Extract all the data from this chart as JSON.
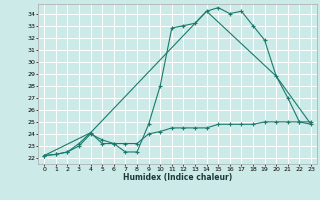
{
  "xlabel": "Humidex (Indice chaleur)",
  "bg_color": "#cceae7",
  "grid_color": "#ffffff",
  "line_color": "#1a7a6e",
  "xlim": [
    -0.5,
    23.5
  ],
  "ylim": [
    21.5,
    34.8
  ],
  "yticks": [
    22,
    23,
    24,
    25,
    26,
    27,
    28,
    29,
    30,
    31,
    32,
    33,
    34
  ],
  "xticks": [
    0,
    1,
    2,
    3,
    4,
    5,
    6,
    7,
    8,
    9,
    10,
    11,
    12,
    13,
    14,
    15,
    16,
    17,
    18,
    19,
    20,
    21,
    22,
    23
  ],
  "series1_x": [
    0,
    1,
    2,
    3,
    4,
    5,
    6,
    7,
    8,
    9,
    10,
    11,
    12,
    13,
    14,
    15,
    16,
    17,
    18,
    19,
    20,
    21,
    22,
    23
  ],
  "series1_y": [
    22.2,
    22.3,
    22.5,
    23.2,
    24.1,
    23.2,
    23.2,
    22.5,
    22.5,
    24.8,
    28.0,
    32.8,
    33.0,
    33.2,
    34.2,
    34.5,
    34.0,
    34.2,
    33.0,
    31.8,
    28.8,
    27.0,
    25.0,
    24.8
  ],
  "series2_x": [
    0,
    1,
    2,
    3,
    4,
    5,
    6,
    7,
    8,
    9,
    10,
    11,
    12,
    13,
    14,
    15,
    16,
    17,
    18,
    19,
    20,
    21,
    22,
    23
  ],
  "series2_y": [
    22.2,
    22.3,
    22.5,
    23.0,
    24.0,
    23.5,
    23.2,
    23.2,
    23.2,
    24.0,
    24.2,
    24.5,
    24.5,
    24.5,
    24.5,
    24.8,
    24.8,
    24.8,
    24.8,
    25.0,
    25.0,
    25.0,
    25.0,
    25.0
  ],
  "series3_x": [
    0,
    4,
    14,
    20,
    23
  ],
  "series3_y": [
    22.2,
    24.1,
    34.2,
    28.8,
    24.8
  ]
}
